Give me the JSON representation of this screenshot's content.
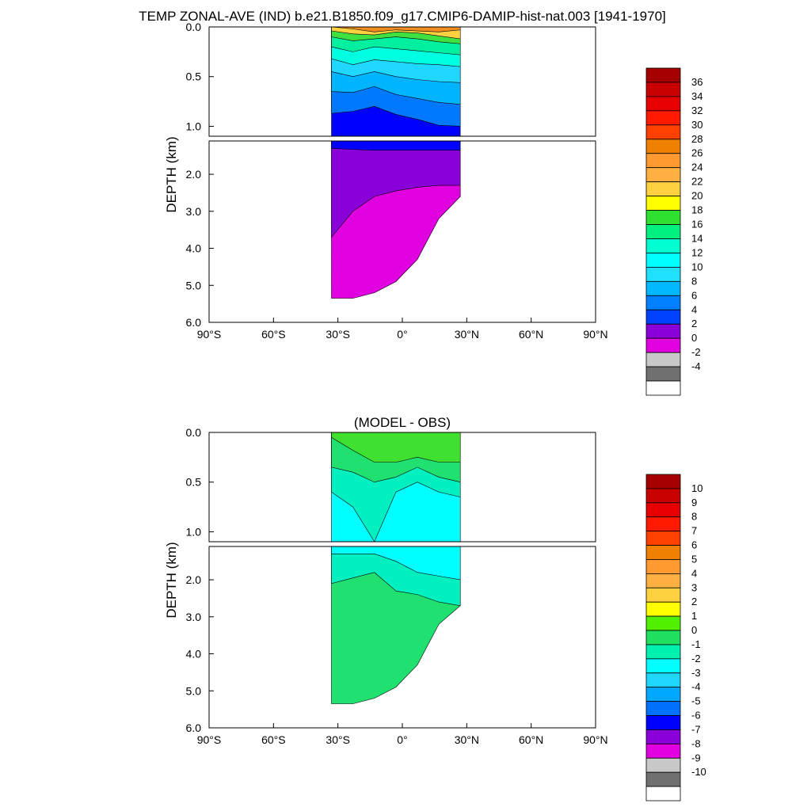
{
  "figure": {
    "title": "TEMP ZONAL-AVE (IND) b.e21.B1850.f09_g17.CMIP6-DAMIP-hist-nat.003 [1941-1970]"
  },
  "chart_data": [
    {
      "type": "heatmap",
      "name_key": "temp",
      "title": "",
      "ylabel": "DEPTH (km)",
      "x_ticks": [
        "90°S",
        "60°S",
        "30°S",
        "0°",
        "30°N",
        "60°N",
        "90°N"
      ],
      "x_tick_values": [
        -90,
        -60,
        -30,
        0,
        30,
        60,
        90
      ],
      "xlim": [
        -90,
        90
      ],
      "y_ticks_upper": [
        "0.0",
        "0.5",
        "1.0"
      ],
      "y_tick_values_upper": [
        0.0,
        0.5,
        1.0
      ],
      "ylim_upper": [
        0.0,
        1.1
      ],
      "y_ticks_lower": [
        "2.0",
        "3.0",
        "4.0",
        "5.0",
        "6.0"
      ],
      "y_tick_values_lower": [
        2.0,
        3.0,
        4.0,
        5.0,
        6.0
      ],
      "ylim_lower": [
        1.1,
        6.0
      ],
      "data_lon_range": [
        -33,
        27
      ],
      "colorbar": {
        "labels": [
          "36",
          "34",
          "32",
          "30",
          "28",
          "26",
          "24",
          "22",
          "20",
          "18",
          "16",
          "14",
          "12",
          "10",
          "8",
          "6",
          "4",
          "2",
          "0",
          "-2",
          "-4"
        ],
        "colors": [
          "#a50000",
          "#c80000",
          "#e60000",
          "#ff1a00",
          "#ff4000",
          "#f08000",
          "#ff9a30",
          "#ffb040",
          "#ffd040",
          "#ffff00",
          "#30e030",
          "#00f080",
          "#00ffd0",
          "#00ffff",
          "#20e0ff",
          "#00b8ff",
          "#0080ff",
          "#0040ff",
          "#8a00d8",
          "#e000e0",
          "#c8c8c8",
          "#707070",
          "#ffffff"
        ]
      },
      "layers_upper": [
        {
          "value": 4,
          "color": "#0000ff",
          "depth_km": [
            1.1,
            1.1,
            1.1,
            1.1,
            1.1,
            1.1,
            1.1
          ]
        },
        {
          "value": 6,
          "color": "#0078ff",
          "depth_km": [
            0.87,
            0.85,
            0.8,
            0.88,
            0.93,
            0.99,
            1.0
          ]
        },
        {
          "value": 8,
          "color": "#00b4ff",
          "depth_km": [
            0.65,
            0.66,
            0.6,
            0.68,
            0.72,
            0.76,
            0.78
          ]
        },
        {
          "value": 10,
          "color": "#20d8ff",
          "depth_km": [
            0.45,
            0.5,
            0.45,
            0.5,
            0.53,
            0.55,
            0.56
          ]
        },
        {
          "value": 12,
          "color": "#00ffe0",
          "depth_km": [
            0.32,
            0.38,
            0.33,
            0.35,
            0.37,
            0.38,
            0.4
          ]
        },
        {
          "value": 14,
          "color": "#00f0a0",
          "depth_km": [
            0.2,
            0.25,
            0.2,
            0.22,
            0.24,
            0.26,
            0.28
          ]
        },
        {
          "value": 18,
          "color": "#40e040",
          "depth_km": [
            0.1,
            0.14,
            0.12,
            0.1,
            0.12,
            0.15,
            0.17
          ]
        },
        {
          "value": 22,
          "color": "#ffd040",
          "depth_km": [
            0.04,
            0.07,
            0.08,
            0.05,
            0.06,
            0.09,
            0.12
          ]
        },
        {
          "value": 26,
          "color": "#f08c20",
          "depth_km": [
            0.0,
            0.02,
            0.05,
            0.03,
            0.04,
            0.05,
            0.03
          ]
        }
      ],
      "layers_lower": [
        {
          "value": 2,
          "color": "#e000e0",
          "depth_km": [
            5.35,
            5.35,
            5.2,
            4.9,
            4.3,
            3.2,
            2.6
          ]
        },
        {
          "value": 4,
          "color": "#8a00d8",
          "depth_km": [
            3.7,
            3.0,
            2.6,
            2.45,
            2.35,
            2.3,
            2.3
          ]
        },
        {
          "value": 6,
          "color": "#0000ff",
          "depth_km": [
            1.3,
            1.33,
            1.35,
            1.35,
            1.35,
            1.35,
            1.35
          ]
        }
      ],
      "column_lon": [
        -33,
        -23,
        -13,
        -3,
        7,
        17,
        27
      ]
    },
    {
      "type": "heatmap",
      "name_key": "diff",
      "title": "(MODEL - OBS)",
      "ylabel": "DEPTH (km)",
      "x_ticks": [
        "90°S",
        "60°S",
        "30°S",
        "0°",
        "30°N",
        "60°N",
        "90°N"
      ],
      "x_tick_values": [
        -90,
        -60,
        -30,
        0,
        30,
        60,
        90
      ],
      "xlim": [
        -90,
        90
      ],
      "y_ticks_upper": [
        "0.0",
        "0.5",
        "1.0"
      ],
      "y_tick_values_upper": [
        0.0,
        0.5,
        1.0
      ],
      "ylim_upper": [
        0.0,
        1.1
      ],
      "y_ticks_lower": [
        "2.0",
        "3.0",
        "4.0",
        "5.0",
        "6.0"
      ],
      "y_tick_values_lower": [
        2.0,
        3.0,
        4.0,
        5.0,
        6.0
      ],
      "ylim_lower": [
        1.1,
        6.0
      ],
      "data_lon_range": [
        -33,
        27
      ],
      "colorbar": {
        "labels": [
          "10",
          "9",
          "8",
          "7",
          "6",
          "5",
          "4",
          "3",
          "2",
          "1",
          "0",
          "-1",
          "-2",
          "-3",
          "-4",
          "-5",
          "-6",
          "-7",
          "-8",
          "-9",
          "-10"
        ],
        "colors": [
          "#a50000",
          "#c80000",
          "#e60000",
          "#ff1a00",
          "#ff4000",
          "#f08000",
          "#ff9a30",
          "#ffb040",
          "#ffd040",
          "#ffff00",
          "#50f000",
          "#20e060",
          "#00f0b0",
          "#00ffff",
          "#20d8ff",
          "#00a8ff",
          "#0070ff",
          "#0000ff",
          "#8a00d8",
          "#e000e0",
          "#c8c8c8",
          "#707070",
          "#ffffff"
        ]
      },
      "layers_upper": [
        {
          "value": -2,
          "color": "#00ffff",
          "depth_km": [
            1.1,
            1.1,
            1.1,
            1.1,
            1.1,
            1.1,
            1.1
          ]
        },
        {
          "value": -1,
          "color": "#00f0c0",
          "depth_km": [
            0.6,
            0.75,
            1.1,
            0.6,
            0.5,
            0.6,
            0.65
          ]
        },
        {
          "value": 0,
          "color": "#20e070",
          "depth_km": [
            0.35,
            0.4,
            0.5,
            0.45,
            0.35,
            0.45,
            0.5
          ]
        },
        {
          "value": 1,
          "color": "#40e030",
          "depth_km": [
            0.05,
            0.18,
            0.3,
            0.3,
            0.25,
            0.3,
            0.3
          ]
        }
      ],
      "layers_lower": [
        {
          "value": 0,
          "color": "#20e070",
          "depth_km": [
            5.35,
            5.35,
            5.2,
            4.9,
            4.3,
            3.2,
            2.7
          ]
        },
        {
          "value": -1,
          "color": "#00f0c0",
          "depth_km": [
            2.1,
            1.95,
            1.8,
            2.3,
            2.4,
            2.6,
            2.7
          ]
        },
        {
          "value": -2,
          "color": "#00ffff",
          "depth_km": [
            1.3,
            1.3,
            1.3,
            1.5,
            1.8,
            1.9,
            2.0
          ]
        }
      ],
      "column_lon": [
        -33,
        -23,
        -13,
        -3,
        7,
        17,
        27
      ]
    }
  ]
}
